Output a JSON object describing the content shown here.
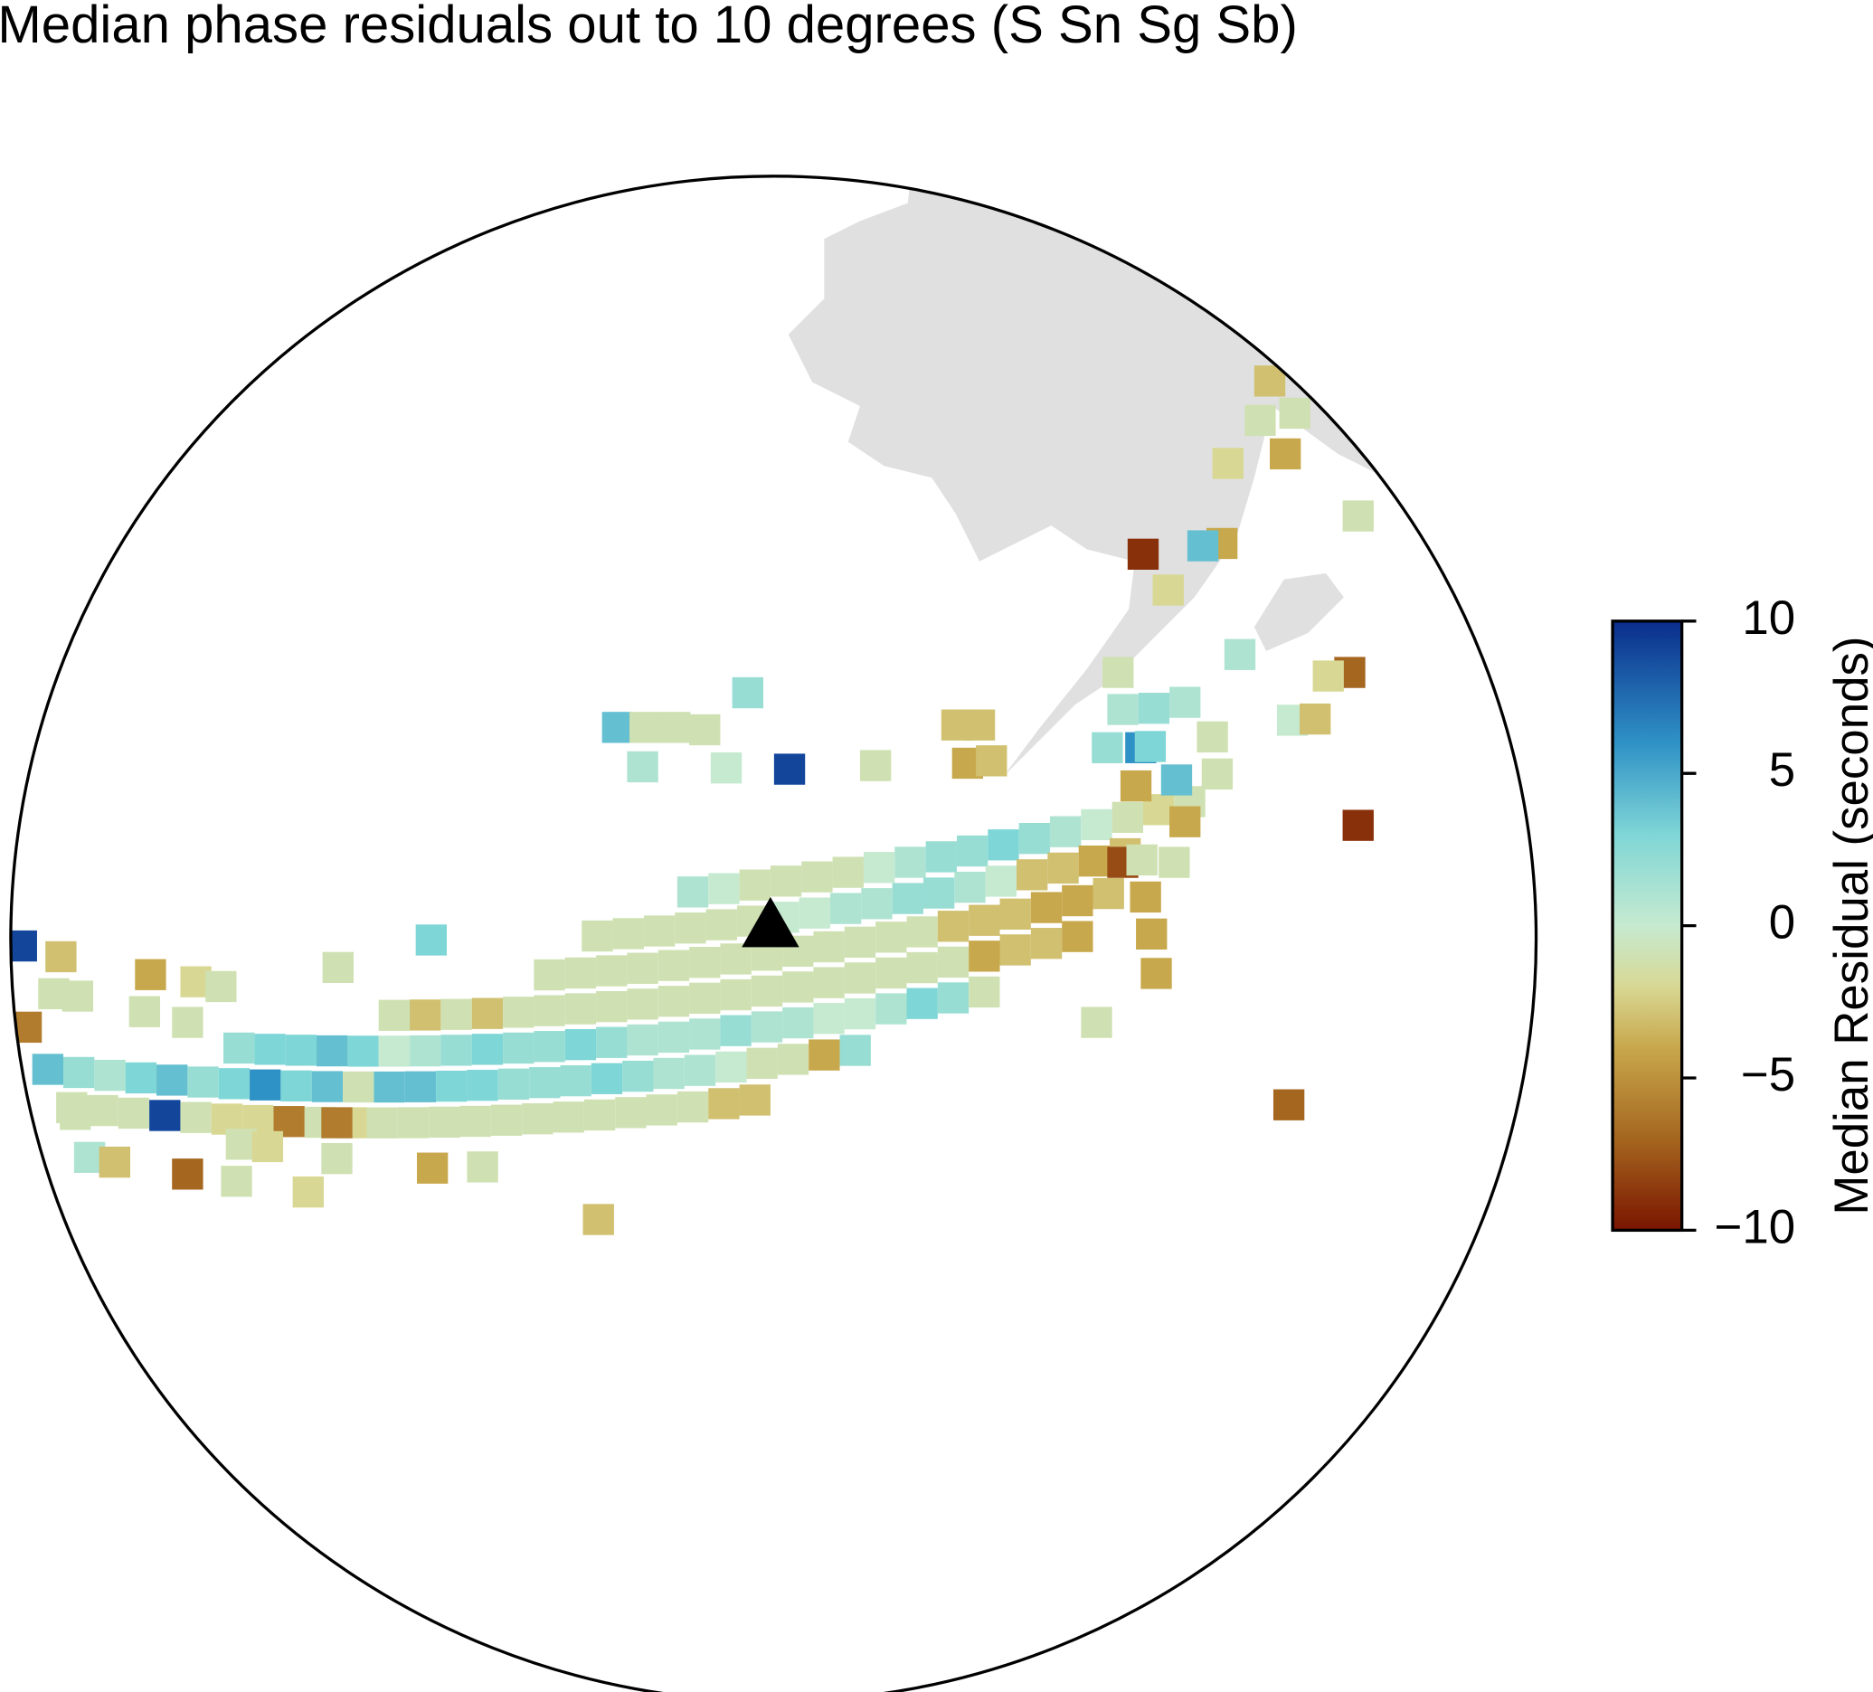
{
  "chart_data": {
    "type": "map",
    "title": "Median phase residuals out to 10 degrees (S Sn Sg Sb)",
    "colorbar": {
      "label": "Median Residual (seconds)",
      "lim": [
        -10,
        10
      ],
      "ticks": [
        10,
        5,
        0,
        {
          "value": -5,
          "label": "−5"
        },
        {
          "value": -10,
          "label": "−10"
        }
      ]
    },
    "colormap": [
      {
        "value": -10,
        "color": "#7a1500"
      },
      {
        "value": -7,
        "color": "#a5661f"
      },
      {
        "value": -4,
        "color": "#c8a84c"
      },
      {
        "value": -2,
        "color": "#d8d894"
      },
      {
        "value": 0,
        "color": "#c6ead0"
      },
      {
        "value": 3,
        "color": "#7fd6d6"
      },
      {
        "value": 6,
        "color": "#2f92c6"
      },
      {
        "value": 10,
        "color": "#0a2d8c"
      }
    ],
    "values": [
      1,
      0,
      -1,
      -1,
      -1,
      -1,
      0,
      1,
      2,
      2,
      3,
      2,
      1,
      0,
      -1,
      -2,
      -1,
      -1,
      -1,
      -1,
      -1,
      -1,
      -1,
      0,
      0,
      1,
      1,
      2,
      2,
      1,
      0,
      -3,
      -3,
      -4,
      -3,
      -1,
      -1,
      -1,
      -1,
      -1,
      -1,
      -1,
      -1,
      -1,
      -1,
      -1,
      -1,
      -1,
      -3,
      -3,
      -3,
      -4,
      -4,
      -3,
      -1,
      -3,
      -1,
      -3,
      -1,
      -1,
      -1,
      -1,
      -1,
      -1,
      -1,
      -1,
      -1,
      -1,
      -1,
      -1,
      -1,
      -1,
      -1,
      -4,
      -3,
      -3,
      -4,
      2,
      3,
      3,
      4,
      3,
      0,
      1,
      2,
      3,
      2,
      2,
      3,
      2,
      1,
      1,
      1,
      2,
      1,
      1,
      0,
      0,
      1,
      3,
      2,
      -1,
      4,
      2,
      1,
      3,
      4,
      2,
      3,
      6,
      3,
      4,
      -1,
      4,
      4,
      3,
      3,
      2,
      2,
      2,
      3,
      2,
      1,
      1,
      0,
      -1,
      -1,
      -4,
      2,
      -1,
      -1,
      -1,
      9,
      -1,
      -2,
      -2,
      -6,
      -1,
      -2,
      -1,
      -1,
      -1,
      -1,
      -1,
      -1,
      -1,
      -1,
      -1,
      -1,
      -1,
      -3,
      -3,
      2,
      4,
      -1,
      -1,
      -1,
      1,
      0,
      9,
      -1,
      -3,
      -3,
      -4,
      -3,
      -3,
      -1,
      -1,
      -4,
      -2,
      -1,
      -9,
      -4,
      4,
      -2,
      1,
      -1,
      -7,
      -2,
      1,
      2,
      1,
      0,
      -3,
      -1,
      6,
      3,
      2,
      -1,
      4,
      -4,
      -9,
      -8,
      -1,
      -4,
      -1,
      -4,
      -4,
      -4,
      9,
      -3,
      -1,
      -1,
      -4,
      -2,
      -1,
      -1,
      3,
      -6,
      -1,
      -1,
      -1,
      -7,
      -1,
      1,
      -3,
      -7,
      -1,
      -2,
      -3,
      -1,
      -2,
      -6,
      -1,
      -4,
      -1
    ]
  }
}
